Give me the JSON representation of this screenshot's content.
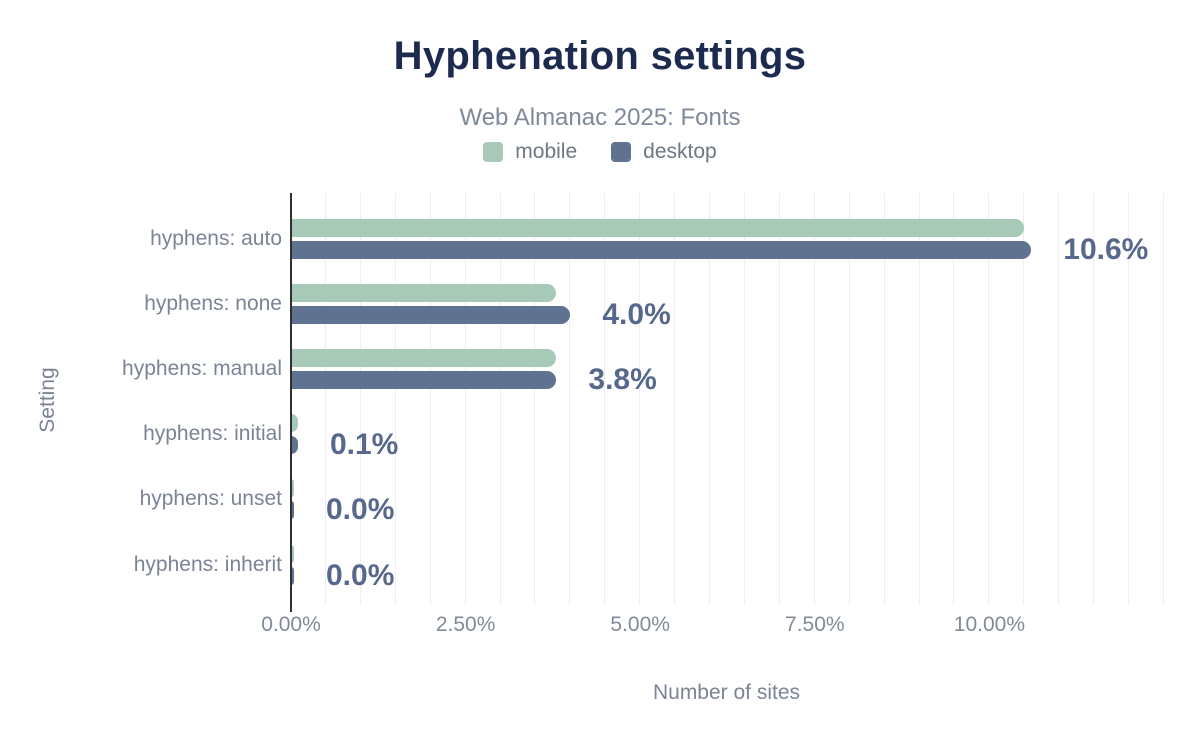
{
  "chart": {
    "title": "Hyphenation settings",
    "subtitle": "Web Almanac 2025: Fonts",
    "legend": [
      {
        "name": "mobile",
        "color": "#a7c9b8"
      },
      {
        "name": "desktop",
        "color": "#5f7390"
      }
    ]
  },
  "chart_data": {
    "type": "bar",
    "orientation": "horizontal",
    "title": "Hyphenation settings",
    "subtitle": "Web Almanac 2025: Fonts",
    "xlabel": "Number of sites",
    "ylabel": "Setting",
    "categories": [
      "hyphens: auto",
      "hyphens: none",
      "hyphens: manual",
      "hyphens: initial",
      "hyphens: unset",
      "hyphens: inherit"
    ],
    "series": [
      {
        "name": "mobile",
        "color": "#a7c9b8",
        "values": [
          10.5,
          3.8,
          3.8,
          0.1,
          0.0,
          0.0
        ]
      },
      {
        "name": "desktop",
        "color": "#5f7390",
        "values": [
          10.6,
          4.0,
          3.8,
          0.1,
          0.0,
          0.0
        ]
      }
    ],
    "value_labels": [
      "10.6%",
      "4.0%",
      "3.8%",
      "0.1%",
      "0.0%",
      "0.0%"
    ],
    "x_ticks": [
      {
        "value": 0,
        "label": "0.00%"
      },
      {
        "value": 2.5,
        "label": "2.50%"
      },
      {
        "value": 5,
        "label": "5.00%"
      },
      {
        "value": 7.5,
        "label": "7.50%"
      },
      {
        "value": 10,
        "label": "10.00%"
      }
    ],
    "xlim": [
      0,
      12.5
    ],
    "gridline_step": 0.5,
    "grid": true,
    "legend_position": "top"
  },
  "colors": {
    "title": "#1b2a4e",
    "subtitle": "#7f8a99",
    "mobile_bar": "#a7c9b8",
    "desktop_bar": "#5f7390",
    "value_label": "#56688c",
    "axis_text": "#828a96",
    "gridline": "#eeeef2",
    "axis_line": "#303034"
  }
}
